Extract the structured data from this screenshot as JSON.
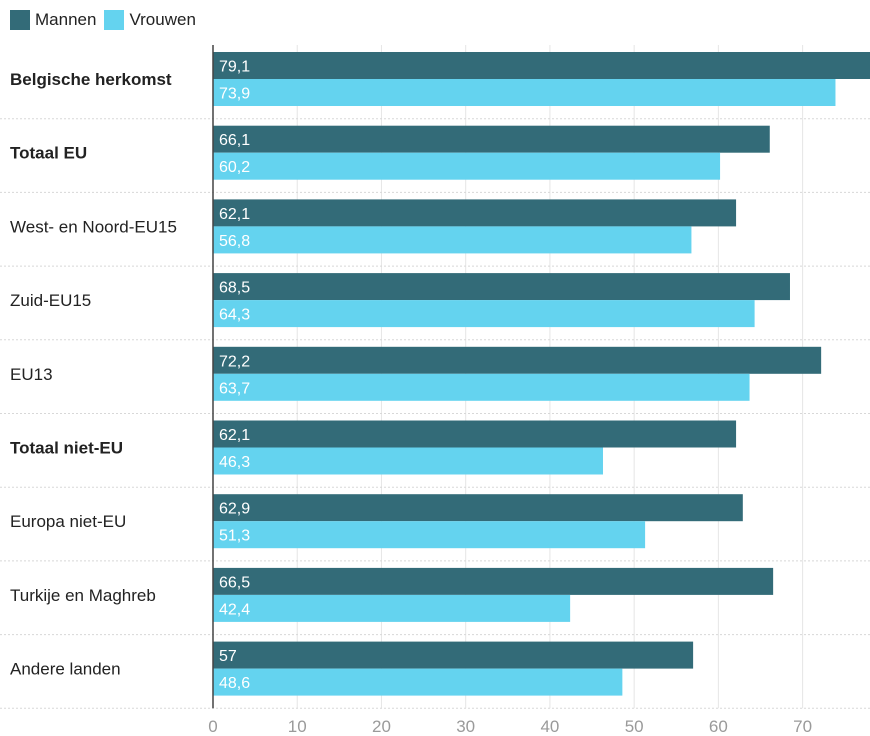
{
  "chart_data": {
    "type": "bar",
    "orientation": "horizontal",
    "categories": [
      {
        "label": "Belgische herkomst",
        "bold": true
      },
      {
        "label": "Totaal EU",
        "bold": true
      },
      {
        "label": "West- en Noord-EU15",
        "bold": false
      },
      {
        "label": "Zuid-EU15",
        "bold": false
      },
      {
        "label": "EU13",
        "bold": false
      },
      {
        "label": "Totaal niet-EU",
        "bold": true
      },
      {
        "label": "Europa niet-EU",
        "bold": false
      },
      {
        "label": "Turkije en Maghreb",
        "bold": false
      },
      {
        "label": "Andere landen",
        "bold": false
      }
    ],
    "series": [
      {
        "name": "Mannen",
        "color": "#336b78",
        "values": [
          79.1,
          66.1,
          62.1,
          68.5,
          72.2,
          62.1,
          62.9,
          66.5,
          57
        ],
        "labels": [
          "79,1",
          "66,1",
          "62,1",
          "68,5",
          "72,2",
          "62,1",
          "62,9",
          "66,5",
          "57"
        ]
      },
      {
        "name": "Vrouwen",
        "color": "#64d3ef",
        "values": [
          73.9,
          60.2,
          56.8,
          64.3,
          63.7,
          46.3,
          51.3,
          42.4,
          48.6
        ],
        "labels": [
          "73,9",
          "60,2",
          "56,8",
          "64,3",
          "63,7",
          "46,3",
          "51,3",
          "42,4",
          "48,6"
        ]
      }
    ],
    "xlim": [
      0,
      78
    ],
    "xticks": [
      0,
      10,
      20,
      30,
      40,
      50,
      60,
      70
    ],
    "xtick_labels": [
      "0",
      "10",
      "20",
      "30",
      "40",
      "50",
      "60",
      "70"
    ],
    "grid": true,
    "legend_position": "top-left"
  }
}
